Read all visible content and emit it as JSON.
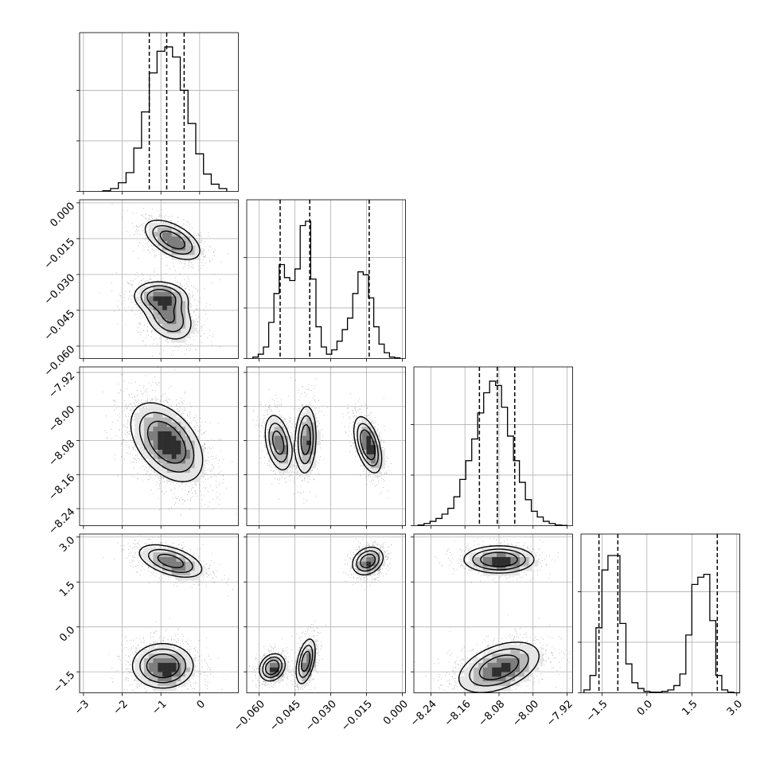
{
  "chart_data": {
    "type": "corner",
    "parameters": [
      {
        "range": [
          -3.1,
          1.0
        ],
        "ticks": [
          -3,
          -2,
          -1,
          0
        ],
        "tick_labels": [
          "−3",
          "−2",
          "−1",
          "0"
        ],
        "quantiles": [
          -1.3,
          -0.85,
          -0.4
        ],
        "hist": {
          "edges": [
            -2.5,
            -2.3,
            -2.1,
            -1.9,
            -1.7,
            -1.5,
            -1.3,
            -1.1,
            -0.9,
            -0.7,
            -0.5,
            -0.3,
            -0.1,
            0.1,
            0.3,
            0.5,
            0.7
          ],
          "heights": [
            0.005,
            0.02,
            0.06,
            0.13,
            0.3,
            0.55,
            0.82,
            0.97,
            1.0,
            0.93,
            0.7,
            0.47,
            0.26,
            0.12,
            0.05,
            0.02
          ]
        }
      },
      {
        "range": [
          -0.0652,
          0.0013
        ],
        "ticks": [
          -0.06,
          -0.045,
          -0.03,
          -0.015,
          0.0
        ],
        "tick_labels": [
          "−0.060",
          "−0.045",
          "−0.030",
          "−0.015",
          "0.000"
        ],
        "quantiles": [
          -0.0512,
          -0.0388,
          -0.0139
        ],
        "hist": {
          "edges": [
            -0.0626,
            -0.0604,
            -0.0582,
            -0.056,
            -0.0538,
            -0.0516,
            -0.0494,
            -0.0472,
            -0.045,
            -0.0428,
            -0.0406,
            -0.0384,
            -0.0362,
            -0.034,
            -0.0318,
            -0.0296,
            -0.0274,
            -0.0252,
            -0.023,
            -0.0208,
            -0.0186,
            -0.0164,
            -0.0142,
            -0.012,
            -0.0098,
            -0.0076,
            -0.0054,
            -0.0032,
            -0.001
          ],
          "heights": [
            0.01,
            0.03,
            0.08,
            0.25,
            0.45,
            0.65,
            0.56,
            0.54,
            0.62,
            0.92,
            0.95,
            0.55,
            0.22,
            0.08,
            0.03,
            0.06,
            0.12,
            0.2,
            0.28,
            0.45,
            0.6,
            0.58,
            0.42,
            0.22,
            0.1,
            0.04,
            0.01,
            0.005
          ]
        }
      },
      {
        "range": [
          -8.28,
          -7.907
        ],
        "ticks": [
          -8.24,
          -8.16,
          -8.08,
          -8.0,
          -7.92
        ],
        "tick_labels": [
          "−8.24",
          "−8.16",
          "−8.08",
          "−8.00",
          "−7.92"
        ],
        "quantiles": [
          -8.126,
          -8.084,
          -8.043
        ],
        "hist": {
          "edges": [
            -8.27,
            -8.256,
            -8.242,
            -8.228,
            -8.214,
            -8.2,
            -8.186,
            -8.172,
            -8.158,
            -8.144,
            -8.13,
            -8.116,
            -8.102,
            -8.088,
            -8.074,
            -8.06,
            -8.046,
            -8.032,
            -8.018,
            -8.004,
            -7.99,
            -7.976,
            -7.962,
            -7.948,
            -7.934,
            -7.92
          ],
          "heights": [
            0.005,
            0.015,
            0.03,
            0.05,
            0.08,
            0.12,
            0.2,
            0.32,
            0.45,
            0.6,
            0.78,
            0.92,
            1.0,
            0.97,
            0.82,
            0.62,
            0.45,
            0.3,
            0.18,
            0.1,
            0.06,
            0.03,
            0.015,
            0.005,
            0.002
          ]
        }
      },
      {
        "range": [
          -2.2,
          3.1
        ],
        "ticks": [
          -1.5,
          0.0,
          1.5,
          3.0
        ],
        "tick_labels": [
          "−1.5",
          "0.0",
          "1.5",
          "3.0"
        ],
        "quantiles": [
          -1.6,
          -0.97,
          2.35
        ],
        "hist": {
          "edges": [
            -2.1,
            -1.9,
            -1.7,
            -1.5,
            -1.3,
            -1.1,
            -0.9,
            -0.7,
            -0.5,
            -0.3,
            -0.1,
            0.1,
            0.3,
            0.5,
            0.7,
            0.9,
            1.1,
            1.3,
            1.5,
            1.7,
            1.9,
            2.1,
            2.3,
            2.5,
            2.7,
            2.9,
            3.1
          ],
          "heights": [
            0.02,
            0.12,
            0.45,
            0.85,
            0.95,
            0.95,
            0.48,
            0.2,
            0.07,
            0.03,
            0.01,
            0.005,
            0.005,
            0.01,
            0.02,
            0.05,
            0.13,
            0.4,
            0.75,
            0.8,
            0.82,
            0.5,
            0.12,
            0.02,
            0.005,
            0.0
          ]
        }
      }
    ],
    "pair_densities": [
      {
        "x": 0,
        "y": 1,
        "modes": [
          {
            "mx": -0.7,
            "my": -0.0155,
            "sx": 0.36,
            "sy": 0.0042,
            "rho": -0.55,
            "w": 0.36
          },
          {
            "mx": -1.0,
            "my": -0.0395,
            "sx": 0.34,
            "sy": 0.0032,
            "rho": -0.1,
            "w": 0.32
          },
          {
            "mx": -0.8,
            "my": -0.048,
            "sx": 0.32,
            "sy": 0.005,
            "rho": -0.3,
            "w": 0.32
          }
        ]
      },
      {
        "x": 0,
        "y": 2,
        "modes": [
          {
            "mx": -0.85,
            "my": -8.084,
            "sx": 0.45,
            "sy": 0.045,
            "rho": -0.45,
            "w": 1.0
          }
        ]
      },
      {
        "x": 1,
        "y": 2,
        "modes": [
          {
            "mx": -0.052,
            "my": -8.085,
            "sx": 0.0028,
            "sy": 0.033,
            "rho": -0.35,
            "w": 0.31
          },
          {
            "mx": -0.0405,
            "my": -8.078,
            "sx": 0.0022,
            "sy": 0.04,
            "rho": 0.1,
            "w": 0.33
          },
          {
            "mx": -0.0145,
            "my": -8.09,
            "sx": 0.0028,
            "sy": 0.032,
            "rho": -0.5,
            "w": 0.36
          }
        ]
      },
      {
        "x": 0,
        "y": 3,
        "modes": [
          {
            "mx": -0.75,
            "my": 2.2,
            "sx": 0.42,
            "sy": 0.28,
            "rho": -0.5,
            "w": 0.36
          },
          {
            "mx": -0.95,
            "my": -1.3,
            "sx": 0.38,
            "sy": 0.36,
            "rho": 0.0,
            "w": 0.64
          }
        ]
      },
      {
        "x": 1,
        "y": 3,
        "modes": [
          {
            "mx": -0.0145,
            "my": 2.2,
            "sx": 0.0032,
            "sy": 0.23,
            "rho": 0.25,
            "w": 0.36
          },
          {
            "mx": -0.0545,
            "my": -1.35,
            "sx": 0.0026,
            "sy": 0.22,
            "rho": 0.2,
            "w": 0.32
          },
          {
            "mx": -0.0405,
            "my": -1.15,
            "sx": 0.002,
            "sy": 0.38,
            "rho": 0.45,
            "w": 0.32
          }
        ]
      },
      {
        "x": 2,
        "y": 3,
        "modes": [
          {
            "mx": -8.08,
            "my": 2.25,
            "sx": 0.04,
            "sy": 0.22,
            "rho": 0.0,
            "w": 0.36
          },
          {
            "mx": -8.08,
            "my": -1.35,
            "sx": 0.047,
            "sy": 0.42,
            "rho": 0.45,
            "w": 0.64
          }
        ]
      }
    ],
    "grid": true,
    "legend": "none"
  }
}
